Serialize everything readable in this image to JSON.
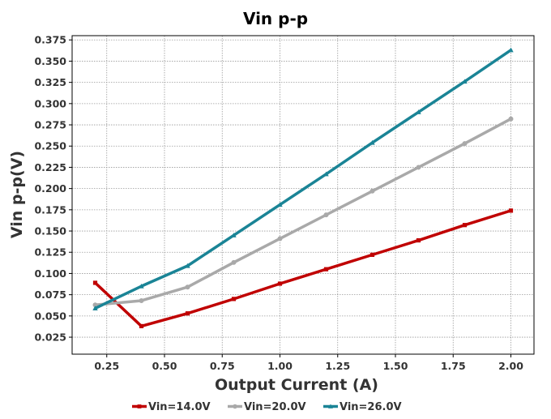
{
  "chart_data": {
    "type": "line",
    "title": "Vin p-p",
    "xlabel": "Output Current (A)",
    "ylabel": "Vin p-p(V)",
    "xlim": [
      0.1,
      2.1
    ],
    "ylim": [
      0.005,
      0.38
    ],
    "x_ticks": [
      0.25,
      0.5,
      0.75,
      1.0,
      1.25,
      1.5,
      1.75,
      2.0
    ],
    "x_tick_labels": [
      "0.25",
      "0.50",
      "0.75",
      "1.00",
      "1.25",
      "1.50",
      "1.75",
      "2.00"
    ],
    "y_ticks": [
      0.025,
      0.05,
      0.075,
      0.1,
      0.125,
      0.15,
      0.175,
      0.2,
      0.225,
      0.25,
      0.275,
      0.3,
      0.325,
      0.35,
      0.375
    ],
    "y_tick_labels": [
      "0.025",
      "0.050",
      "0.075",
      "0.100",
      "0.125",
      "0.150",
      "0.175",
      "0.200",
      "0.225",
      "0.250",
      "0.275",
      "0.300",
      "0.325",
      "0.350",
      "0.375"
    ],
    "grid": true,
    "legend_position": "bottom",
    "x": [
      0.2,
      0.4,
      0.6,
      0.8,
      1.0,
      1.2,
      1.4,
      1.6,
      1.8,
      2.0
    ],
    "series": [
      {
        "name": "Vin=14.0V",
        "color": "#c00000",
        "marker": "square",
        "values": [
          0.089,
          0.038,
          0.053,
          0.07,
          0.088,
          0.105,
          0.122,
          0.139,
          0.157,
          0.174
        ]
      },
      {
        "name": "Vin=20.0V",
        "color": "#a9a9a9",
        "marker": "circle",
        "values": [
          0.063,
          0.068,
          0.084,
          0.113,
          0.141,
          0.169,
          0.197,
          0.225,
          0.253,
          0.282
        ]
      },
      {
        "name": "Vin=26.0V",
        "color": "#1a8496",
        "marker": "triangle",
        "values": [
          0.059,
          0.085,
          0.109,
          0.145,
          0.181,
          0.217,
          0.254,
          0.29,
          0.326,
          0.363
        ]
      }
    ]
  }
}
